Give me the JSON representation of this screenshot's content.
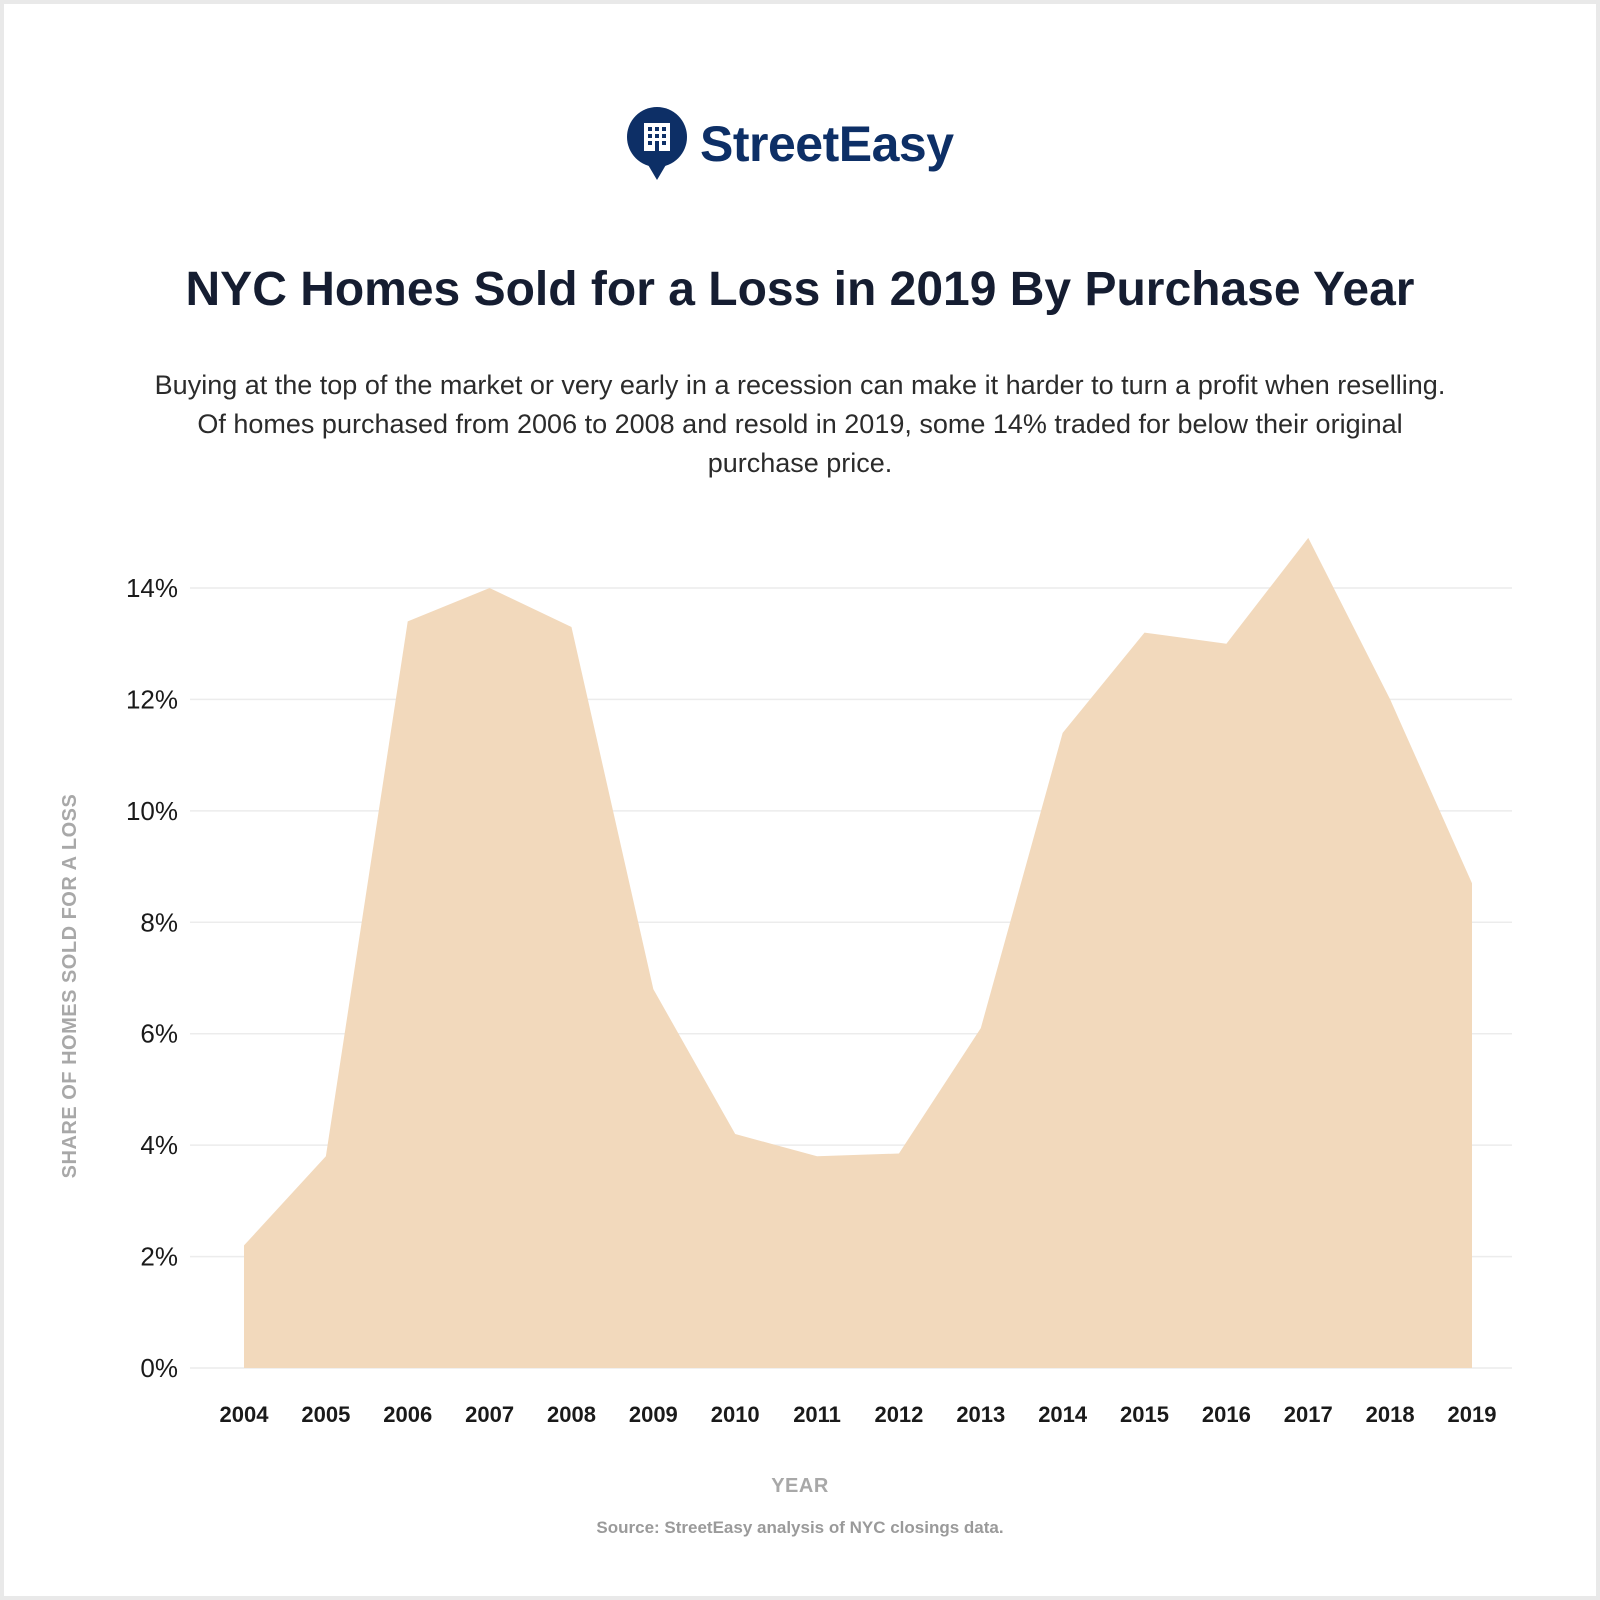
{
  "brand": {
    "name": "StreetEasy",
    "color": "#0d2f66"
  },
  "header": {
    "title": "NYC Homes Sold for a Loss in 2019 By Purchase Year",
    "subtitle": "Buying at the top of the market or very early in a recession can make it harder to turn a profit when reselling. Of homes purchased from 2006 to 2008 and resold in 2019, some 14% traded for below their original purchase price."
  },
  "footer": {
    "source": "Source: StreetEasy analysis of NYC closings data."
  },
  "chart_data": {
    "type": "area",
    "xlabel": "YEAR",
    "ylabel": "SHARE OF HOMES SOLD FOR A LOSS",
    "x": [
      "2004",
      "2005",
      "2006",
      "2007",
      "2008",
      "2009",
      "2010",
      "2011",
      "2012",
      "2013",
      "2014",
      "2015",
      "2016",
      "2017",
      "2018",
      "2019"
    ],
    "y": [
      2.2,
      3.8,
      13.4,
      14.0,
      13.3,
      6.8,
      4.2,
      3.8,
      3.85,
      6.1,
      11.4,
      13.2,
      13.0,
      14.9,
      12.0,
      8.7
    ],
    "ylim": [
      0,
      14
    ],
    "yticks": [
      0,
      2,
      4,
      6,
      8,
      10,
      12,
      14
    ],
    "ytick_labels": [
      "0%",
      "2%",
      "4%",
      "6%",
      "8%",
      "10%",
      "12%",
      "14%"
    ],
    "fill_color": "#f2d9bc",
    "grid": true,
    "legend": "none"
  }
}
